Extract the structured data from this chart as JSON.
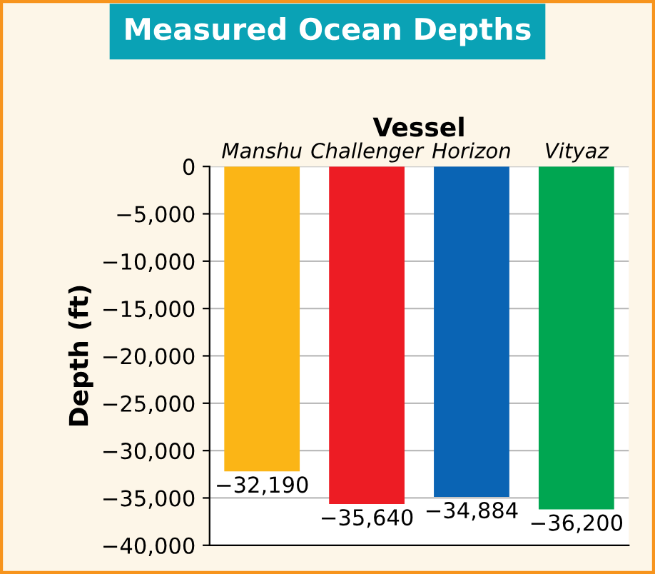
{
  "chart_data": {
    "type": "bar",
    "title": "Measured Ocean Depths",
    "xlabel": "Vessel",
    "ylabel": "Depth (ft)",
    "categories": [
      "Manshu",
      "Challenger",
      "Horizon",
      "Vityaz"
    ],
    "values": [
      -32190,
      -35640,
      -34884,
      -36200
    ],
    "colors": [
      "#fbb516",
      "#ed1c24",
      "#0a64b4",
      "#00a651"
    ],
    "value_labels": [
      "−32,190",
      "−35,640",
      "−34,884",
      "−36,200"
    ],
    "ylim": [
      -40000,
      0
    ],
    "yticks": [
      {
        "value": 0,
        "label": "0"
      },
      {
        "value": -5000,
        "label": "−5,000"
      },
      {
        "value": -10000,
        "label": "−10,000"
      },
      {
        "value": -15000,
        "label": "−15,000"
      },
      {
        "value": -20000,
        "label": "−20,000"
      },
      {
        "value": -25000,
        "label": "−25,000"
      },
      {
        "value": -30000,
        "label": "−30,000"
      },
      {
        "value": -35000,
        "label": "−35,000"
      },
      {
        "value": -40000,
        "label": "−40,000"
      }
    ],
    "grid": "y"
  }
}
